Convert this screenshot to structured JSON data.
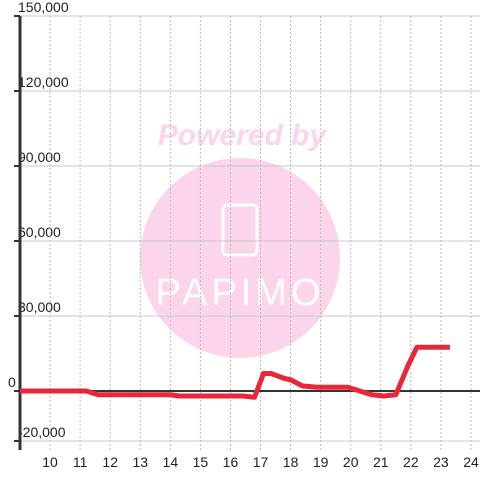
{
  "chart_data": {
    "type": "line",
    "watermark": {
      "top": "Powered by",
      "logo": "PAPIMO"
    },
    "x": [
      9,
      11.2,
      11.6,
      14,
      14.3,
      16.4,
      16.8,
      17.1,
      17.35,
      17.8,
      18,
      18.4,
      18.9,
      19.9,
      20.3,
      20.7,
      21.1,
      21.5,
      21.9,
      22.2,
      23.3
    ],
    "series": [
      {
        "color": "#e8283a",
        "values": [
          0,
          0,
          -1500,
          -1500,
          -2000,
          -2000,
          -2500,
          7000,
          7000,
          5000,
          4500,
          2000,
          1500,
          1500,
          0,
          -1500,
          -2000,
          -1500,
          10000,
          17500,
          17500
        ]
      }
    ],
    "xlim": [
      9,
      24.3
    ],
    "ylim": [
      -23600,
      150000
    ],
    "xticks": [
      10,
      11,
      12,
      13,
      14,
      15,
      16,
      17,
      18,
      19,
      20,
      21,
      22,
      23,
      24
    ],
    "yticks": [
      {
        "value": 150000,
        "label": "150,000"
      },
      {
        "value": 120000,
        "label": "120,000"
      },
      {
        "value": 90000,
        "label": "90,000"
      },
      {
        "value": 60000,
        "label": "60,000"
      },
      {
        "value": 30000,
        "label": "30,000"
      },
      0,
      {
        "value": -20000,
        "label": "-20,000"
      }
    ],
    "grid": true
  }
}
